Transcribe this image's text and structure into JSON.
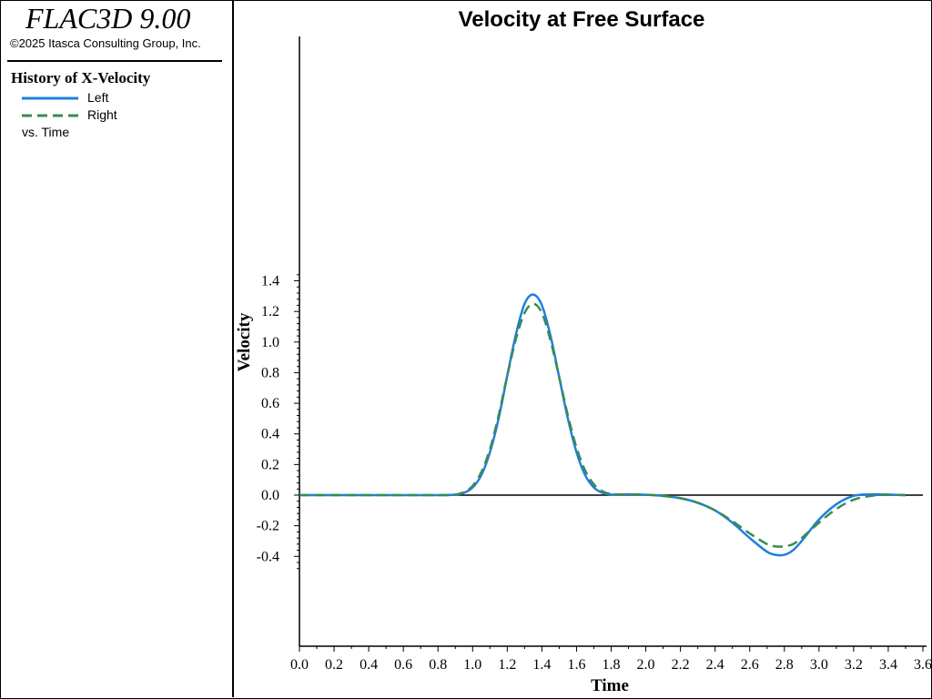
{
  "header": {
    "app_title": "FLAC3D 9.00",
    "copyright": "©2025 Itasca Consulting Group, Inc."
  },
  "legend": {
    "title": "History of X-Velocity",
    "vs_label": "vs. Time"
  },
  "colors": {
    "left": "#1f7fe0",
    "right": "#3a8a55",
    "axis": "#000000"
  },
  "chart_data": {
    "type": "line",
    "title": "Velocity at Free Surface",
    "xlabel": "Time",
    "ylabel": "Velocity",
    "xlim": [
      0,
      3.6
    ],
    "ylim": [
      -0.5,
      1.5
    ],
    "xticks": [
      "0.0",
      "0.2",
      "0.4",
      "0.6",
      "0.8",
      "1.0",
      "1.2",
      "1.4",
      "1.6",
      "1.8",
      "2.0",
      "2.2",
      "2.4",
      "2.6",
      "2.8",
      "3.0",
      "3.2",
      "3.4",
      "3.6"
    ],
    "yticks": [
      "1.4",
      "1.2",
      "1.0",
      "0.8",
      "0.6",
      "0.4",
      "0.2",
      "0.0",
      "-0.2",
      "-0.4"
    ],
    "legend_placement": "left-panel",
    "series": [
      {
        "name": "Left",
        "style": "solid",
        "x": [
          0.0,
          0.2,
          0.4,
          0.6,
          0.8,
          0.9,
          0.95,
          1.0,
          1.05,
          1.1,
          1.15,
          1.2,
          1.25,
          1.3,
          1.35,
          1.4,
          1.45,
          1.5,
          1.55,
          1.6,
          1.65,
          1.7,
          1.75,
          1.8,
          1.9,
          2.0,
          2.1,
          2.2,
          2.3,
          2.4,
          2.5,
          2.6,
          2.7,
          2.75,
          2.8,
          2.85,
          2.9,
          3.0,
          3.1,
          3.2,
          3.3,
          3.4,
          3.5
        ],
        "y": [
          0.0,
          0.0,
          0.0,
          0.0,
          0.0,
          0.003,
          0.015,
          0.05,
          0.13,
          0.28,
          0.5,
          0.78,
          1.05,
          1.25,
          1.31,
          1.24,
          1.04,
          0.77,
          0.5,
          0.28,
          0.13,
          0.05,
          0.015,
          0.004,
          0.005,
          0.002,
          -0.005,
          -0.02,
          -0.05,
          -0.1,
          -0.18,
          -0.28,
          -0.37,
          -0.39,
          -0.39,
          -0.36,
          -0.3,
          -0.16,
          -0.06,
          -0.005,
          0.005,
          0.004,
          0.0
        ]
      },
      {
        "name": "Right",
        "style": "dashed",
        "x": [
          0.0,
          0.2,
          0.4,
          0.6,
          0.8,
          0.9,
          0.95,
          1.0,
          1.05,
          1.1,
          1.15,
          1.2,
          1.25,
          1.3,
          1.35,
          1.4,
          1.45,
          1.5,
          1.55,
          1.6,
          1.65,
          1.7,
          1.75,
          1.8,
          1.9,
          2.0,
          2.1,
          2.2,
          2.3,
          2.4,
          2.5,
          2.6,
          2.7,
          2.75,
          2.8,
          2.85,
          2.9,
          3.0,
          3.1,
          3.2,
          3.3,
          3.4,
          3.5
        ],
        "y": [
          0.0,
          0.0,
          0.0,
          0.0,
          0.0,
          0.004,
          0.02,
          0.06,
          0.15,
          0.3,
          0.52,
          0.78,
          1.02,
          1.19,
          1.25,
          1.19,
          1.01,
          0.77,
          0.52,
          0.31,
          0.16,
          0.07,
          0.025,
          0.008,
          0.004,
          0.002,
          -0.005,
          -0.02,
          -0.05,
          -0.1,
          -0.17,
          -0.25,
          -0.32,
          -0.335,
          -0.335,
          -0.32,
          -0.28,
          -0.18,
          -0.09,
          -0.03,
          -0.005,
          0.002,
          0.0
        ]
      }
    ]
  }
}
